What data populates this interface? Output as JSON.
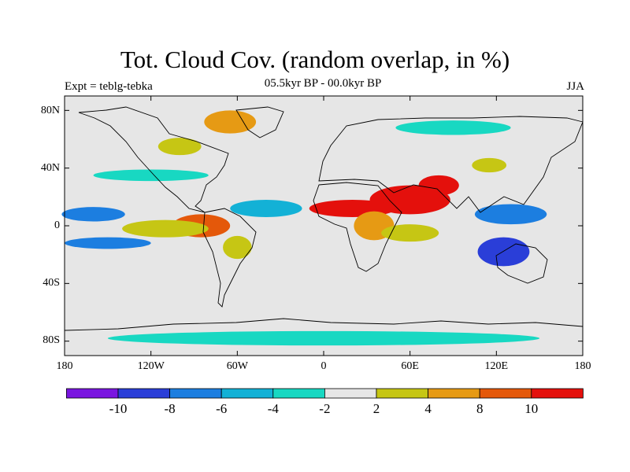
{
  "title": "Tot. Cloud Cov. (random overlap, in %)",
  "subtitle": "05.5kyr BP - 00.0kyr BP",
  "experiment": "Expt = teblg-tebka",
  "season": "JJA",
  "lat_labels": [
    "80N",
    "40N",
    "0",
    "40S",
    "80S"
  ],
  "lat_values": [
    80,
    40,
    0,
    -40,
    -80
  ],
  "lon_labels": [
    "180",
    "120W",
    "60W",
    "0",
    "60E",
    "120E",
    "180"
  ],
  "lon_values": [
    -180,
    -120,
    -60,
    0,
    60,
    120,
    180
  ],
  "colorbar": {
    "labels": [
      "-10",
      "-8",
      "-6",
      "-4",
      "-2",
      "2",
      "4",
      "8",
      "10"
    ],
    "bins": [
      {
        "color": "#7a15e0"
      },
      {
        "color": "#2a3ed8"
      },
      {
        "color": "#1c7ee0"
      },
      {
        "color": "#13b1d6"
      },
      {
        "color": "#18d8c2"
      },
      {
        "color": "#e6e6e6"
      },
      {
        "color": "#c6c614"
      },
      {
        "color": "#e69a14"
      },
      {
        "color": "#e4580a"
      },
      {
        "color": "#e4100c"
      }
    ]
  },
  "map_background": "#e6e6e6",
  "anomaly_regions": [
    {
      "lon": 60,
      "lat": 18,
      "rx": 28,
      "ry": 10,
      "color": "#e4100c",
      "name": "red-arabia-anomaly"
    },
    {
      "lon": 20,
      "lat": 12,
      "rx": 30,
      "ry": 6,
      "color": "#e4100c",
      "name": "red-sahel-anomaly"
    },
    {
      "lon": 80,
      "lat": 28,
      "rx": 14,
      "ry": 7,
      "color": "#e4100c",
      "name": "red-india-anomaly"
    },
    {
      "lon": -85,
      "lat": 0,
      "rx": 20,
      "ry": 8,
      "color": "#e4580a",
      "name": "orange-nw-southamerica-anomaly"
    },
    {
      "lon": 35,
      "lat": 0,
      "rx": 14,
      "ry": 10,
      "color": "#e69a14",
      "name": "orange-eastafrica-anomaly"
    },
    {
      "lon": -110,
      "lat": -2,
      "rx": 30,
      "ry": 6,
      "color": "#c6c614",
      "name": "yellow-pacific-band"
    },
    {
      "lon": 60,
      "lat": -5,
      "rx": 20,
      "ry": 6,
      "color": "#c6c614",
      "name": "yellow-indian-ocean-band"
    },
    {
      "lon": -65,
      "lat": 72,
      "rx": 18,
      "ry": 8,
      "color": "#e69a14",
      "name": "orange-arctic-canada-anomaly"
    },
    {
      "lon": -100,
      "lat": 55,
      "rx": 15,
      "ry": 6,
      "color": "#c6c614",
      "name": "yellow-canada-anomaly"
    },
    {
      "lon": 125,
      "lat": -18,
      "rx": 18,
      "ry": 10,
      "color": "#2a3ed8",
      "name": "blue-australia-anomaly"
    },
    {
      "lon": 130,
      "lat": 8,
      "rx": 25,
      "ry": 7,
      "color": "#1c7ee0",
      "name": "blue-westpacific-anomaly"
    },
    {
      "lon": -160,
      "lat": 8,
      "rx": 22,
      "ry": 5,
      "color": "#1c7ee0",
      "name": "blue-central-pacific-anomaly"
    },
    {
      "lon": -150,
      "lat": -12,
      "rx": 30,
      "ry": 4,
      "color": "#1c7ee0",
      "name": "blue-south-pacific-band"
    },
    {
      "lon": -40,
      "lat": 12,
      "rx": 25,
      "ry": 6,
      "color": "#13b1d6",
      "name": "cyan-atlantic-anomaly"
    },
    {
      "lon": 90,
      "lat": 68,
      "rx": 40,
      "ry": 5,
      "color": "#18d8c2",
      "name": "turquoise-siberia-anomaly"
    },
    {
      "lon": 0,
      "lat": -78,
      "rx": 150,
      "ry": 5,
      "color": "#18d8c2",
      "name": "turquoise-antarctic-band"
    },
    {
      "lon": -120,
      "lat": 35,
      "rx": 40,
      "ry": 4,
      "color": "#18d8c2",
      "name": "turquoise-northpacific-band"
    },
    {
      "lon": 115,
      "lat": 42,
      "rx": 12,
      "ry": 5,
      "color": "#c6c614",
      "name": "yellow-northchina-anomaly"
    },
    {
      "lon": -60,
      "lat": -15,
      "rx": 10,
      "ry": 8,
      "color": "#c6c614",
      "name": "yellow-brazil-anomaly"
    }
  ]
}
